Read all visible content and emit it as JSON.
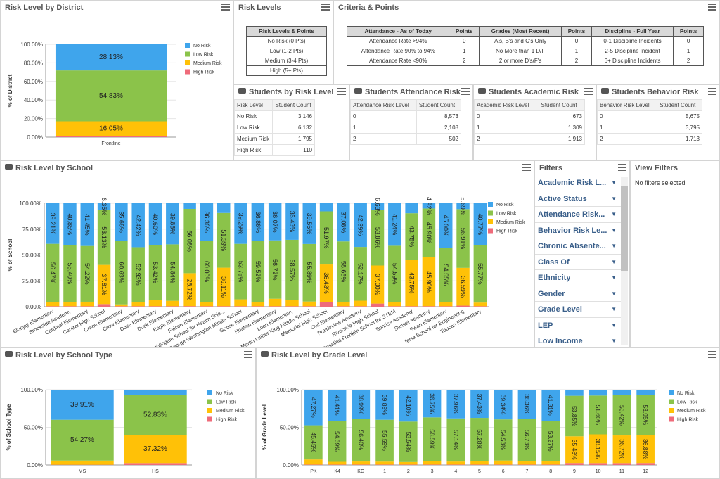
{
  "colors": {
    "no_risk": "#3fa5ec",
    "low_risk": "#8bc34a",
    "medium_risk": "#ffc107",
    "high_risk": "#ef6b7a"
  },
  "panels": {
    "district": {
      "title": "Risk Level by District"
    },
    "risk_levels": {
      "title": "Risk Levels"
    },
    "criteria": {
      "title": "Criteria & Points"
    },
    "students_risk": {
      "title": "Students by Risk Level"
    },
    "attendance_risk": {
      "title": "Students Attendance Risk"
    },
    "academic_risk": {
      "title": "Students Academic Risk"
    },
    "behavior_risk": {
      "title": "Students Behavior Risk"
    },
    "school": {
      "title": "Risk Level by School"
    },
    "filters": {
      "title": "Filters"
    },
    "view_filters": {
      "title": "View Filters",
      "empty": "No filters selected"
    },
    "school_type": {
      "title": "Risk Level by School Type"
    },
    "grade_level": {
      "title": "Risk Level by Grade Level"
    }
  },
  "risk_levels_table": {
    "header": "Risk Levels & Points",
    "rows": [
      "No Risk (0 Pts)",
      "Low (1-2 Pts)",
      "Medium (3-4 Pts)",
      "High (5+ Pts)"
    ]
  },
  "criteria_table": {
    "headers": [
      "Attendance - As of Today",
      "Points",
      "Grades (Most Recent)",
      "Points",
      "Discipline - Full Year",
      "Points"
    ],
    "rows": [
      [
        "Attendance Rate >94%",
        "0",
        "A's, B's and C's Only",
        "0",
        "0-1 Discipline Incidents",
        "0"
      ],
      [
        "Attendance Rate 90% to 94%",
        "1",
        "No More than 1 D/F",
        "1",
        "2-5 Discipline Incident",
        "1"
      ],
      [
        "Attendance Rate <90%",
        "2",
        "2 or more D's/F's",
        "2",
        "6+ Discipline Incidents",
        "2"
      ]
    ]
  },
  "students_risk_table": {
    "headers": [
      "Risk Level",
      "Student Count"
    ],
    "rows": [
      [
        "No Risk",
        "3,146"
      ],
      [
        "Low Risk",
        "6,132"
      ],
      [
        "Medium Risk",
        "1,795"
      ],
      [
        "High Risk",
        "110"
      ]
    ]
  },
  "attendance_risk_table": {
    "headers": [
      "Attendance Risk Level",
      "Student Count"
    ],
    "rows": [
      [
        "0",
        "8,573"
      ],
      [
        "1",
        "2,108"
      ],
      [
        "2",
        "502"
      ]
    ]
  },
  "academic_risk_table": {
    "headers": [
      "Academic Risk Level",
      "Student Count"
    ],
    "rows": [
      [
        "0",
        "673"
      ],
      [
        "1",
        "1,309"
      ],
      [
        "2",
        "1,913"
      ]
    ]
  },
  "behavior_risk_table": {
    "headers": [
      "Behavior Risk Level",
      "Student Count"
    ],
    "rows": [
      [
        "0",
        "5,675"
      ],
      [
        "1",
        "3,795"
      ],
      [
        "2",
        "1,713"
      ]
    ]
  },
  "filters": {
    "items": [
      "Academic Risk L...",
      "Active Status",
      "Attendance Risk...",
      "Behavior Risk Le...",
      "Chronic Absente...",
      "Class Of",
      "Ethnicity",
      "Gender",
      "Grade Level",
      "LEP",
      "Low Income"
    ]
  },
  "chart_data": [
    {
      "type": "bar",
      "title": "Risk Level by District",
      "ylabel": "% of District",
      "ylim": [
        0,
        100
      ],
      "yticks": [
        "0.00%",
        "20.00%",
        "40.00%",
        "60.00%",
        "80.00%",
        "100.00%"
      ],
      "categories": [
        "Frontline"
      ],
      "legend": [
        "No Risk",
        "Low Risk",
        "Medium Risk",
        "High Risk"
      ],
      "series": [
        {
          "name": "High Risk",
          "values": [
            0.99
          ]
        },
        {
          "name": "Medium Risk",
          "values": [
            16.05
          ]
        },
        {
          "name": "Low Risk",
          "values": [
            54.83
          ]
        },
        {
          "name": "No Risk",
          "values": [
            28.13
          ]
        }
      ],
      "labels": {
        "No Risk": [
          "28.13%"
        ],
        "Low Risk": [
          "54.83%"
        ],
        "Medium Risk": [
          "16.05%"
        ],
        "High Risk": [
          ""
        ]
      }
    },
    {
      "type": "bar",
      "title": "Risk Level by School",
      "ylabel": "% of School",
      "ylim": [
        0,
        100
      ],
      "yticks": [
        "0.00%",
        "25.00%",
        "50.00%",
        "75.00%",
        "100.00%"
      ],
      "categories": [
        "Bluejay Elementary",
        "Brookside Academy",
        "Cardinal Elementary",
        "Central High School",
        "Crane Elementary",
        "Crow Elementary",
        "Dove Elementary",
        "Duck Elementary",
        "Eagle Elementary",
        "Falcon Elementary",
        "Florence Nightingale School for Health Scie...",
        "George Washington Middle School",
        "Goose Elementary",
        "Hoatzin Elementary",
        "Loon Elementary",
        "Martin Luther King Middle School",
        "Memorial High School",
        "Owl Elementary",
        "Prairieview Academy",
        "Riverside High School",
        "Rosalind Franklin School for STEM",
        "Sunrise Academy",
        "Sunset Academy",
        "Swan Elementary",
        "Telsa School for Engineering",
        "Toucan Elementary"
      ],
      "legend": [
        "No Risk",
        "Low Risk",
        "Medium Risk",
        "High Risk"
      ],
      "series": [
        {
          "name": "High Risk",
          "values": [
            0.5,
            0.5,
            0.5,
            2.5,
            0.5,
            0.5,
            0.5,
            0.5,
            0.5,
            0.5,
            0.5,
            0.5,
            0.5,
            0.5,
            0.5,
            0.5,
            4.8,
            0.5,
            0.5,
            3.0,
            0.5,
            0.5,
            0.5,
            0.5,
            1.0,
            0.5
          ]
        },
        {
          "name": "Medium Risk",
          "values": [
            3.8,
            4.1,
            4.3,
            37.81,
            1.7,
            4.0,
            6.0,
            5.2,
            28.72,
            3.6,
            36.11,
            6.6,
            3.9,
            7.2,
            5.8,
            4.5,
            36.43,
            4.3,
            5.3,
            37.0,
            4.1,
            43.75,
            45.9,
            4.2,
            36.59,
            3.5
          ]
        },
        {
          "name": "Low Risk",
          "values": [
            56.47,
            55.4,
            54.2,
            53.13,
            60.63,
            52.93,
            53.42,
            54.84,
            56.08,
            60.0,
            51.39,
            53.75,
            59.52,
            56.72,
            58.57,
            55.89,
            51.97,
            58.65,
            52.17,
            53.86,
            54.59,
            43.75,
            45.9,
            54.55,
            56.91,
            55.77
          ]
        },
        {
          "name": "No Risk",
          "values": [
            39.21,
            40.85,
            41.45,
            6.35,
            35.66,
            42.42,
            40.6,
            39.88,
            4.9,
            36.36,
            9.12,
            39.29,
            36.86,
            36.07,
            35.43,
            39.56,
            7.9,
            37.08,
            42.39,
            6.63,
            41.24,
            9.38,
            4.92,
            45.0,
            5.69,
            40.77
          ]
        }
      ],
      "labels": {
        "No Risk": [
          "39.21%",
          "40.85%",
          "41.45%",
          "6.35%",
          "35.66%",
          "42.42%",
          "40.60%",
          "39.88%",
          "",
          "36.36%",
          "",
          "39.29%",
          "36.86%",
          "36.07%",
          "35.43%",
          "39.56%",
          "",
          "37.08%",
          "42.39%",
          "6.63%",
          "41.24%",
          "",
          "4.92%",
          "45.00%",
          "5.69%",
          "40.77%"
        ],
        "Low Risk": [
          "56.47%",
          "55.40%",
          "54.22%",
          "53.13%",
          "60.63%",
          "52.93%",
          "53.42%",
          "54.84%",
          "56.08%",
          "60.00%",
          "51.39%",
          "53.75%",
          "59.52%",
          "56.72%",
          "58.57%",
          "55.89%",
          "51.97%",
          "58.65%",
          "52.17%",
          "53.86%",
          "54.59%",
          "43.75%",
          "45.90%",
          "54.55%",
          "56.91%",
          "55.77%"
        ],
        "Medium Risk": [
          "",
          "",
          "",
          "37.81%",
          "",
          "",
          "",
          "",
          "28.72%",
          "",
          "36.11%",
          "",
          "",
          "",
          "",
          "",
          "36.43%",
          "",
          "",
          "37.00%",
          "",
          "43.75%",
          "45.90%",
          "",
          "36.59%",
          ""
        ],
        "High Risk": [
          "",
          "",
          "",
          "",
          "",
          "",
          "",
          "",
          "",
          "",
          "",
          "",
          "",
          "",
          "",
          "",
          "",
          "",
          "",
          "",
          "",
          "",
          "",
          "",
          "",
          ""
        ]
      }
    },
    {
      "type": "bar",
      "title": "Risk Level by School Type",
      "ylabel": "% of School Type",
      "ylim": [
        0,
        100
      ],
      "yticks": [
        "0.00%",
        "50.00%",
        "100.00%"
      ],
      "categories": [
        "MS",
        "HS"
      ],
      "legend": [
        "No Risk",
        "Low Risk",
        "Medium Risk",
        "High Risk"
      ],
      "series": [
        {
          "name": "High Risk",
          "values": [
            0.3,
            2.5
          ]
        },
        {
          "name": "Medium Risk",
          "values": [
            5.52,
            37.32
          ]
        },
        {
          "name": "Low Risk",
          "values": [
            54.27,
            52.83
          ]
        },
        {
          "name": "No Risk",
          "values": [
            39.91,
            7.35
          ]
        }
      ],
      "labels": {
        "No Risk": [
          "39.91%",
          ""
        ],
        "Low Risk": [
          "54.27%",
          "52.83%"
        ],
        "Medium Risk": [
          "",
          "37.32%"
        ],
        "High Risk": [
          "",
          ""
        ]
      }
    },
    {
      "type": "bar",
      "title": "Risk Level by Grade Level",
      "ylabel": "% of Grade Level",
      "ylim": [
        0,
        100
      ],
      "yticks": [
        "0.00%",
        "50.00%",
        "100.00%"
      ],
      "categories": [
        "PK",
        "K4",
        "KG",
        "1",
        "2",
        "3",
        "4",
        "5",
        "6",
        "7",
        "8",
        "9",
        "10",
        "11",
        "12"
      ],
      "legend": [
        "No Risk",
        "Low Risk",
        "Medium Risk",
        "High Risk"
      ],
      "series": [
        {
          "name": "High Risk",
          "values": [
            0.5,
            0.5,
            0.5,
            0.5,
            0.5,
            0.5,
            0.5,
            0.5,
            0.5,
            0.5,
            0.5,
            2.6,
            2.5,
            2.5,
            2.6
          ]
        },
        {
          "name": "Medium Risk",
          "values": [
            6.8,
            3.7,
            4.11,
            3.99,
            3.36,
            4.17,
            4.04,
            4.8,
            5.41,
            4.4,
            4.32,
            35.48,
            38.15,
            36.72,
            36.88
          ]
        },
        {
          "name": "Low Risk",
          "values": [
            45.45,
            54.39,
            56.4,
            55.59,
            53.54,
            58.59,
            57.14,
            57.28,
            54.53,
            56.73,
            53.27,
            53.85,
            51.6,
            53.42,
            53.95
          ]
        },
        {
          "name": "No Risk",
          "values": [
            47.27,
            41.41,
            38.99,
            39.89,
            42.1,
            36.75,
            37.96,
            37.43,
            39.34,
            38.36,
            41.31,
            8.07,
            7.75,
            7.36,
            6.57
          ]
        }
      ],
      "labels": {
        "No Risk": [
          "47.27%",
          "41.41%",
          "38.99%",
          "39.89%",
          "42.10%",
          "36.75%",
          "37.96%",
          "37.43%",
          "39.34%",
          "38.36%",
          "41.31%",
          "",
          "",
          "",
          ""
        ],
        "Low Risk": [
          "45.45%",
          "54.39%",
          "56.40%",
          "55.59%",
          "53.54%",
          "58.59%",
          "57.14%",
          "57.28%",
          "54.53%",
          "56.73%",
          "53.27%",
          "53.85%",
          "51.60%",
          "53.42%",
          "53.95%"
        ],
        "Medium Risk": [
          "",
          "",
          "",
          "",
          "",
          "",
          "",
          "",
          "",
          "",
          "",
          "35.48%",
          "38.15%",
          "36.72%",
          "36.88%"
        ],
        "High Risk": [
          "",
          "",
          "",
          "",
          "",
          "",
          "",
          "",
          "",
          "",
          "",
          "",
          "",
          "",
          ""
        ]
      }
    }
  ]
}
